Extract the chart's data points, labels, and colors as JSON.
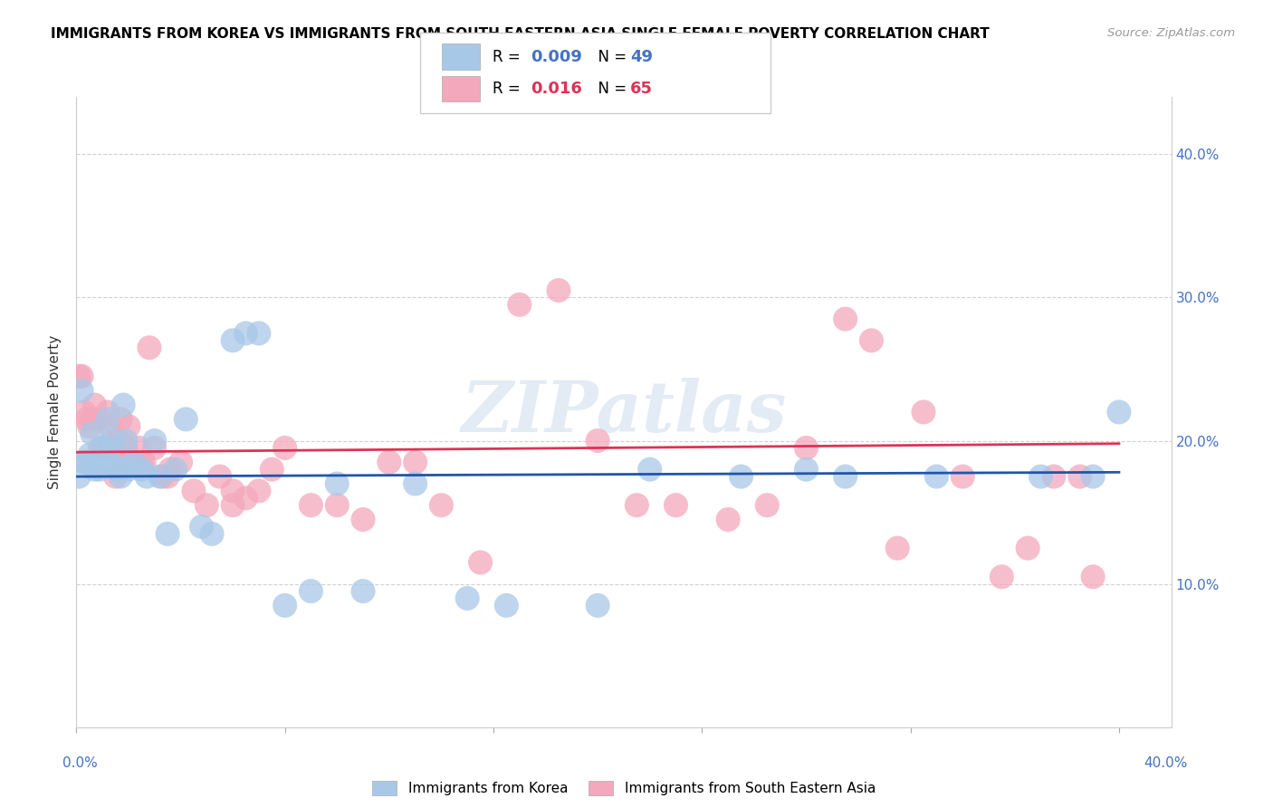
{
  "title": "IMMIGRANTS FROM KOREA VS IMMIGRANTS FROM SOUTH EASTERN ASIA SINGLE FEMALE POVERTY CORRELATION CHART",
  "source": "Source: ZipAtlas.com",
  "ylabel": "Single Female Poverty",
  "xlim": [
    0.0,
    0.42
  ],
  "ylim": [
    0.0,
    0.44
  ],
  "korea_R": "0.009",
  "korea_N": "49",
  "sea_R": "0.016",
  "sea_N": "65",
  "korea_color": "#a8c8e8",
  "sea_color": "#f4a8bc",
  "korea_line_color": "#2255aa",
  "sea_line_color": "#dd3355",
  "watermark": "ZIPatlas",
  "korea_trend_x": [
    0.0,
    0.4
  ],
  "korea_trend_y": [
    0.175,
    0.178
  ],
  "sea_trend_x": [
    0.0,
    0.4
  ],
  "sea_trend_y": [
    0.192,
    0.198
  ],
  "korea_x": [
    0.001,
    0.002,
    0.003,
    0.004,
    0.005,
    0.006,
    0.007,
    0.008,
    0.009,
    0.01,
    0.011,
    0.012,
    0.013,
    0.014,
    0.015,
    0.016,
    0.017,
    0.018,
    0.019,
    0.02,
    0.022,
    0.025,
    0.027,
    0.03,
    0.032,
    0.035,
    0.038,
    0.042,
    0.048,
    0.052,
    0.06,
    0.065,
    0.07,
    0.08,
    0.09,
    0.1,
    0.11,
    0.13,
    0.15,
    0.165,
    0.2,
    0.22,
    0.255,
    0.28,
    0.295,
    0.33,
    0.37,
    0.39,
    0.4
  ],
  "korea_y": [
    0.175,
    0.235,
    0.185,
    0.185,
    0.19,
    0.205,
    0.18,
    0.185,
    0.18,
    0.195,
    0.195,
    0.215,
    0.185,
    0.2,
    0.18,
    0.18,
    0.175,
    0.225,
    0.2,
    0.18,
    0.185,
    0.18,
    0.175,
    0.2,
    0.175,
    0.135,
    0.18,
    0.215,
    0.14,
    0.135,
    0.27,
    0.275,
    0.275,
    0.085,
    0.095,
    0.17,
    0.095,
    0.17,
    0.09,
    0.085,
    0.085,
    0.18,
    0.175,
    0.18,
    0.175,
    0.175,
    0.175,
    0.175,
    0.22
  ],
  "sea_x": [
    0.001,
    0.002,
    0.003,
    0.004,
    0.005,
    0.006,
    0.007,
    0.008,
    0.009,
    0.01,
    0.011,
    0.012,
    0.013,
    0.014,
    0.015,
    0.016,
    0.017,
    0.018,
    0.019,
    0.02,
    0.022,
    0.024,
    0.026,
    0.028,
    0.03,
    0.033,
    0.036,
    0.04,
    0.045,
    0.05,
    0.055,
    0.06,
    0.065,
    0.07,
    0.08,
    0.09,
    0.1,
    0.11,
    0.12,
    0.13,
    0.14,
    0.155,
    0.17,
    0.185,
    0.2,
    0.215,
    0.23,
    0.25,
    0.265,
    0.28,
    0.295,
    0.305,
    0.315,
    0.325,
    0.34,
    0.355,
    0.365,
    0.375,
    0.385,
    0.39,
    0.015,
    0.025,
    0.035,
    0.06,
    0.075
  ],
  "sea_y": [
    0.245,
    0.245,
    0.22,
    0.215,
    0.21,
    0.215,
    0.225,
    0.215,
    0.195,
    0.195,
    0.195,
    0.22,
    0.21,
    0.195,
    0.195,
    0.2,
    0.215,
    0.185,
    0.195,
    0.21,
    0.185,
    0.195,
    0.185,
    0.265,
    0.195,
    0.175,
    0.18,
    0.185,
    0.165,
    0.155,
    0.175,
    0.155,
    0.16,
    0.165,
    0.195,
    0.155,
    0.155,
    0.145,
    0.185,
    0.185,
    0.155,
    0.115,
    0.295,
    0.305,
    0.2,
    0.155,
    0.155,
    0.145,
    0.155,
    0.195,
    0.285,
    0.27,
    0.125,
    0.22,
    0.175,
    0.105,
    0.125,
    0.175,
    0.175,
    0.105,
    0.175,
    0.185,
    0.175,
    0.165,
    0.18
  ]
}
